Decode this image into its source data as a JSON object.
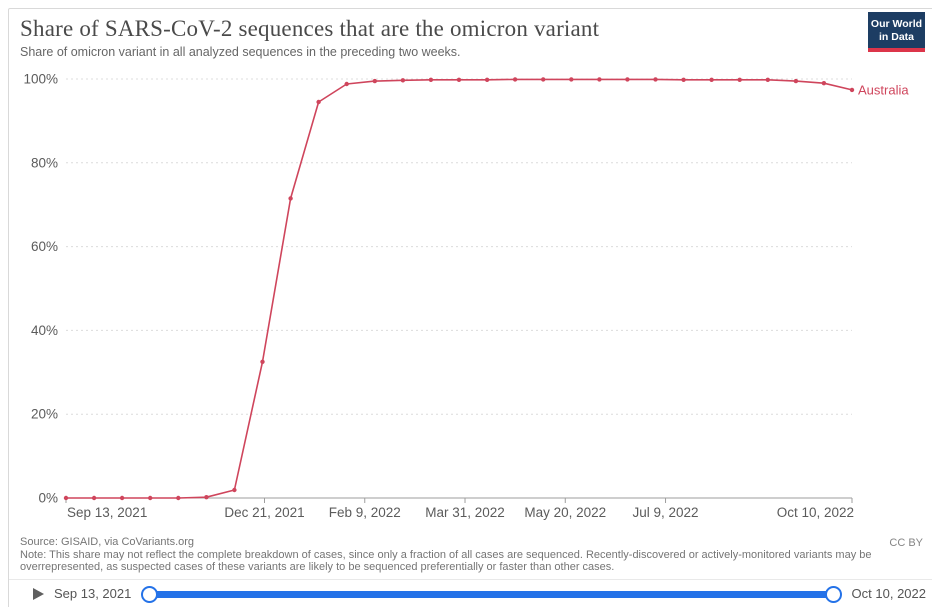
{
  "header": {
    "title": "Share of SARS-CoV-2 sequences that are the omicron variant",
    "subtitle": "Share of omicron variant in all analyzed sequences in the preceding two weeks.",
    "logo": {
      "line1": "Our World",
      "line2": "in Data"
    }
  },
  "colors": {
    "series": "#cf455c",
    "slider_blue": "#2472e8",
    "logo_bg": "#1d3d63",
    "logo_accent": "#dc354a",
    "grid": "#dcdcdc",
    "axis": "#9e9e9e",
    "tick_text": "#5b5b5b"
  },
  "chart_data": {
    "type": "line",
    "title": "Share of SARS-CoV-2 sequences that are the omicron variant",
    "xlabel": "",
    "ylabel": "",
    "ylim": [
      0,
      100
    ],
    "ytick_values": [
      0,
      20,
      40,
      60,
      80,
      100
    ],
    "ytick_suffix": "%",
    "grid": "horizontal-dashed",
    "legend_position": "end-of-line",
    "x_total_days": 392,
    "xticks": [
      {
        "label": "Sep 13, 2021",
        "day": 0
      },
      {
        "label": "Dec 21, 2021",
        "day": 99
      },
      {
        "label": "Feb 9, 2022",
        "day": 149
      },
      {
        "label": "Mar 31, 2022",
        "day": 199
      },
      {
        "label": "May 20, 2022",
        "day": 249
      },
      {
        "label": "Jul 9, 2022",
        "day": 299
      },
      {
        "label": "Oct 10, 2022",
        "day": 392
      }
    ],
    "series": [
      {
        "name": "Australia",
        "color": "#cf455c",
        "points": [
          {
            "date": "Sep 13, 2021",
            "day": 0,
            "value": 0
          },
          {
            "date": "Sep 27, 2021",
            "day": 14,
            "value": 0
          },
          {
            "date": "Oct 11, 2021",
            "day": 28,
            "value": 0
          },
          {
            "date": "Oct 25, 2021",
            "day": 42,
            "value": 0
          },
          {
            "date": "Nov 8, 2021",
            "day": 56,
            "value": 0
          },
          {
            "date": "Nov 22, 2021",
            "day": 70,
            "value": 0.2
          },
          {
            "date": "Dec 6, 2021",
            "day": 84,
            "value": 1.9
          },
          {
            "date": "Dec 20, 2021",
            "day": 98,
            "value": 32.5
          },
          {
            "date": "Jan 3, 2022",
            "day": 112,
            "value": 71.5
          },
          {
            "date": "Jan 17, 2022",
            "day": 126,
            "value": 94.5
          },
          {
            "date": "Jan 31, 2022",
            "day": 140,
            "value": 98.8
          },
          {
            "date": "Feb 14, 2022",
            "day": 154,
            "value": 99.5
          },
          {
            "date": "Feb 28, 2022",
            "day": 168,
            "value": 99.7
          },
          {
            "date": "Mar 14, 2022",
            "day": 182,
            "value": 99.8
          },
          {
            "date": "Mar 28, 2022",
            "day": 196,
            "value": 99.8
          },
          {
            "date": "Apr 11, 2022",
            "day": 210,
            "value": 99.8
          },
          {
            "date": "Apr 25, 2022",
            "day": 224,
            "value": 99.9
          },
          {
            "date": "May 9, 2022",
            "day": 238,
            "value": 99.9
          },
          {
            "date": "May 23, 2022",
            "day": 252,
            "value": 99.9
          },
          {
            "date": "Jun 6, 2022",
            "day": 266,
            "value": 99.9
          },
          {
            "date": "Jun 20, 2022",
            "day": 280,
            "value": 99.9
          },
          {
            "date": "Jul 4, 2022",
            "day": 294,
            "value": 99.9
          },
          {
            "date": "Jul 18, 2022",
            "day": 308,
            "value": 99.8
          },
          {
            "date": "Aug 1, 2022",
            "day": 322,
            "value": 99.8
          },
          {
            "date": "Aug 15, 2022",
            "day": 336,
            "value": 99.8
          },
          {
            "date": "Aug 29, 2022",
            "day": 350,
            "value": 99.8
          },
          {
            "date": "Sep 12, 2022",
            "day": 364,
            "value": 99.5
          },
          {
            "date": "Sep 26, 2022",
            "day": 378,
            "value": 99.0
          },
          {
            "date": "Oct 10, 2022",
            "day": 392,
            "value": 97.4
          }
        ]
      }
    ]
  },
  "footer": {
    "source": "Source: GISAID, via CoVariants.org",
    "note_lines": [
      "Note: This share may not reflect the complete breakdown of cases, since only a fraction of all cases are sequenced. Recently-discovered or actively-monitored variants may be",
      "overrepresented, as suspected cases of these variants are likely to be sequenced preferentially or faster than other cases."
    ],
    "license": "CC BY"
  },
  "timeline": {
    "start_label": "Sep 13, 2021",
    "end_label": "Oct 10, 2022"
  }
}
